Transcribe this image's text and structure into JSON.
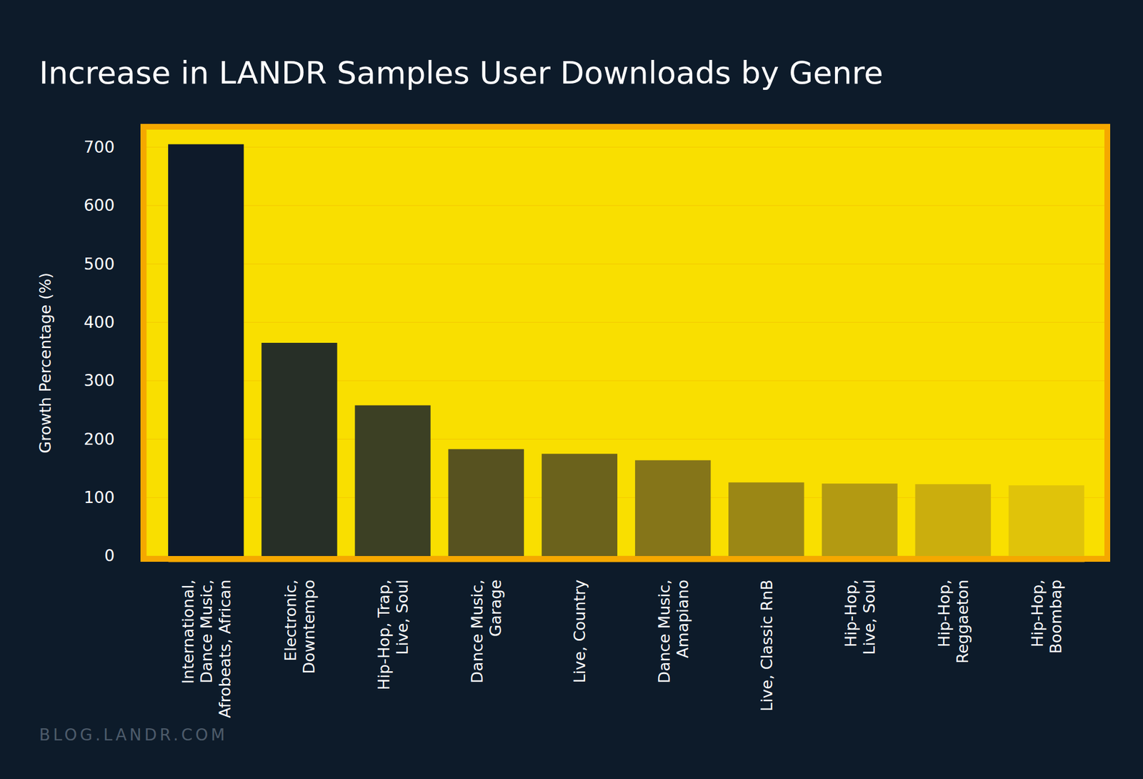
{
  "chart_data": {
    "type": "bar",
    "title": "Increase in LANDR Samples User Downloads by Genre",
    "source": "BLOG.LANDR.COM",
    "y_label": "Growth Percentage (%)",
    "categories": [
      "International,\nDance Music,\nAfrobeats, African",
      "Electronic,\nDowntempo",
      "Hip-Hop, Trap,\nLive, Soul",
      "Dance Music,\nGarage",
      "Live, Country",
      "Dance Music,\nAmapiano",
      "Live, Classic RnB",
      "Hip-Hop,\nLive, Soul",
      "Hip-Hop,\nReggaeton",
      "Hip-Hop,\nBoombap"
    ],
    "values": [
      705,
      365,
      258,
      183,
      175,
      164,
      126,
      124,
      123,
      121
    ],
    "colors": [
      "#0e1a2a",
      "#272f27",
      "#3c4024",
      "#575220",
      "#6b621c",
      "#857519",
      "#9b8715",
      "#b39a12",
      "#cbae0d",
      "#e0c30a"
    ],
    "ylim": [
      0,
      730
    ],
    "yticks": [
      0,
      100,
      200,
      300,
      400,
      500,
      600,
      700
    ],
    "grid": true
  }
}
